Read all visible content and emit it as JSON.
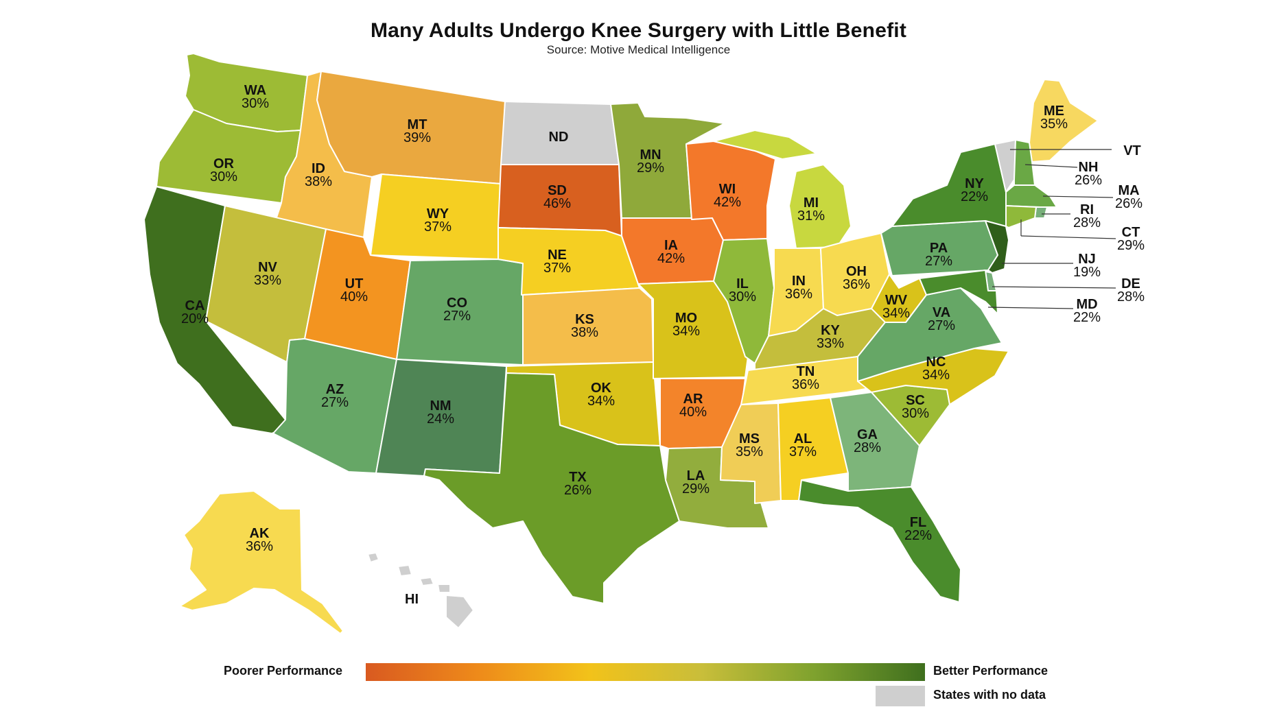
{
  "title": "Many Adults Undergo Knee Surgery with Little Benefit",
  "source": "Source: Motive Medical Intelligence",
  "legend": {
    "poorer": "Poorer Performance",
    "better": "Better Performance",
    "no_data": "States with no data",
    "gradient_colors": [
      "#d95a20",
      "#ee8a1a",
      "#f2c21a",
      "#c9be3a",
      "#7fa22e",
      "#3f6f1e"
    ],
    "no_data_color": "#cfcfcf"
  },
  "states": [
    {
      "abbr": "WA",
      "value": "30%"
    },
    {
      "abbr": "OR",
      "value": "30%"
    },
    {
      "abbr": "CA",
      "value": "20%"
    },
    {
      "abbr": "ID",
      "value": "38%"
    },
    {
      "abbr": "NV",
      "value": "33%"
    },
    {
      "abbr": "MT",
      "value": "39%"
    },
    {
      "abbr": "WY",
      "value": "37%"
    },
    {
      "abbr": "UT",
      "value": "40%"
    },
    {
      "abbr": "AZ",
      "value": "27%"
    },
    {
      "abbr": "CO",
      "value": "27%"
    },
    {
      "abbr": "NM",
      "value": "24%"
    },
    {
      "abbr": "ND",
      "value": ""
    },
    {
      "abbr": "SD",
      "value": "46%"
    },
    {
      "abbr": "NE",
      "value": "37%"
    },
    {
      "abbr": "KS",
      "value": "38%"
    },
    {
      "abbr": "OK",
      "value": "34%"
    },
    {
      "abbr": "TX",
      "value": "26%"
    },
    {
      "abbr": "MN",
      "value": "29%"
    },
    {
      "abbr": "IA",
      "value": "42%"
    },
    {
      "abbr": "MO",
      "value": "34%"
    },
    {
      "abbr": "AR",
      "value": "40%"
    },
    {
      "abbr": "LA",
      "value": "29%"
    },
    {
      "abbr": "WI",
      "value": "42%"
    },
    {
      "abbr": "IL",
      "value": "30%"
    },
    {
      "abbr": "MI",
      "value": "31%"
    },
    {
      "abbr": "IN",
      "value": "36%"
    },
    {
      "abbr": "OH",
      "value": "36%"
    },
    {
      "abbr": "KY",
      "value": "33%"
    },
    {
      "abbr": "TN",
      "value": "36%"
    },
    {
      "abbr": "MS",
      "value": "35%"
    },
    {
      "abbr": "AL",
      "value": "37%"
    },
    {
      "abbr": "GA",
      "value": "28%"
    },
    {
      "abbr": "FL",
      "value": "22%"
    },
    {
      "abbr": "SC",
      "value": "30%"
    },
    {
      "abbr": "NC",
      "value": "34%"
    },
    {
      "abbr": "VA",
      "value": "27%"
    },
    {
      "abbr": "WV",
      "value": "34%"
    },
    {
      "abbr": "PA",
      "value": "27%"
    },
    {
      "abbr": "NY",
      "value": "22%"
    },
    {
      "abbr": "ME",
      "value": "35%"
    },
    {
      "abbr": "VT",
      "value": ""
    },
    {
      "abbr": "NH",
      "value": "26%"
    },
    {
      "abbr": "MA",
      "value": "26%"
    },
    {
      "abbr": "RI",
      "value": "28%"
    },
    {
      "abbr": "CT",
      "value": "29%"
    },
    {
      "abbr": "NJ",
      "value": "19%"
    },
    {
      "abbr": "DE",
      "value": "28%"
    },
    {
      "abbr": "MD",
      "value": "22%"
    },
    {
      "abbr": "AK",
      "value": "36%"
    },
    {
      "abbr": "HI",
      "value": ""
    }
  ],
  "colors": {
    "WA": "#9dbb35",
    "OR": "#9dbb35",
    "CA": "#3f6f1e",
    "ID": "#f4bd4a",
    "NV": "#c4be3c",
    "MT": "#eaa83f",
    "WY": "#f5cf22",
    "UT": "#f39420",
    "AZ": "#66a766",
    "CO": "#66a766",
    "NM": "#4f8555",
    "ND": "#cfcfcf",
    "SD": "#d8601f",
    "NE": "#f5cf22",
    "KS": "#f4bd4a",
    "OK": "#d9c21a",
    "TX": "#6b9c28",
    "MN": "#8fa93a",
    "IA": "#f3782a",
    "MO": "#d9c21a",
    "AR": "#f3842a",
    "LA": "#92ad3d",
    "WI": "#f3782a",
    "IL": "#8fb93a",
    "MI": "#c8d83f",
    "IN": "#f7da50",
    "OH": "#f7da50",
    "KY": "#c4be3c",
    "TN": "#f7da50",
    "MS": "#f0cd56",
    "AL": "#f5cf22",
    "GA": "#7db57a",
    "FL": "#4a8c2c",
    "SC": "#9dbb35",
    "NC": "#d9c21a",
    "VA": "#66a766",
    "WV": "#d9c21a",
    "PA": "#66a766",
    "NY": "#4a8c2c",
    "ME": "#f7d860",
    "VT": "#cfcfcf",
    "NH": "#6aa845",
    "MA": "#6aa845",
    "RI": "#78b07a",
    "CT": "#8fb93a",
    "NJ": "#2f5e1a",
    "DE": "#78b07a",
    "MD": "#4a8c2c",
    "AK": "#f7da50",
    "HI": "#cfcfcf"
  }
}
